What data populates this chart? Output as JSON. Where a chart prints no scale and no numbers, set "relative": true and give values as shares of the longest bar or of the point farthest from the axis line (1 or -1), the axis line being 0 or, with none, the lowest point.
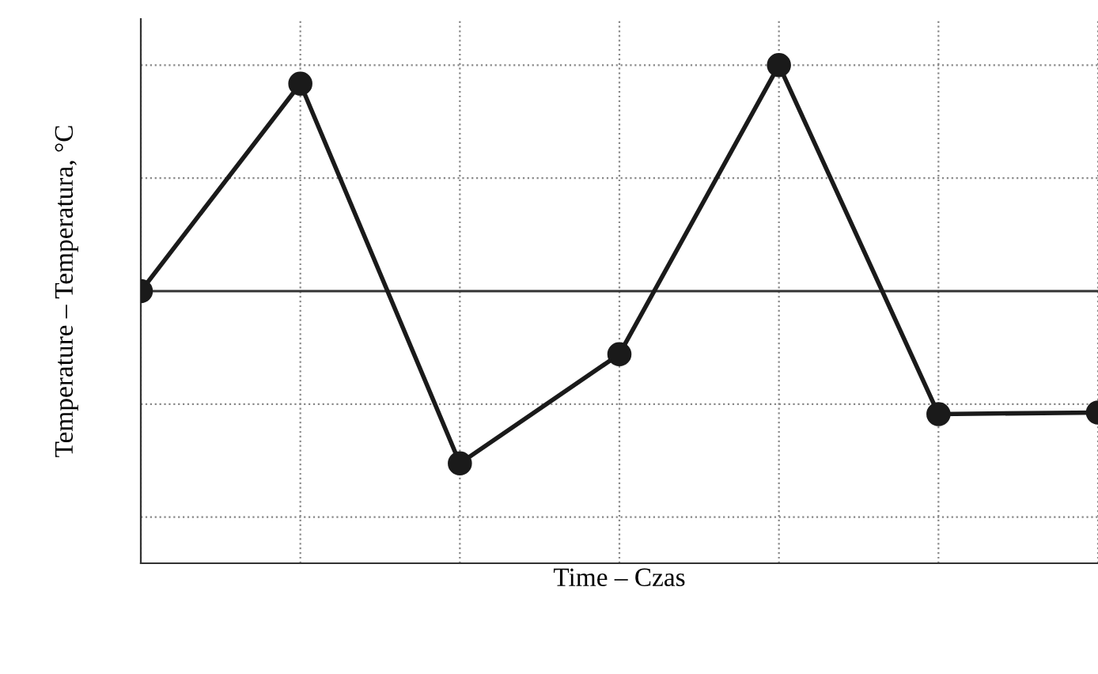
{
  "chart_data": {
    "type": "line",
    "relative": true,
    "xlabel": "Time – Czas",
    "ylabel": "Temperature – Temperatura, °C",
    "categories": [
      null,
      null,
      null,
      null,
      null,
      null,
      null
    ],
    "series": [
      {
        "color": "#1a1a1a",
        "values": [
          0,
          0.918,
          -0.762,
          -0.279,
          1,
          -0.544,
          -0.537
        ]
      }
    ],
    "marker": "circle",
    "line_style": "solid",
    "grid": true,
    "legend": false
  }
}
